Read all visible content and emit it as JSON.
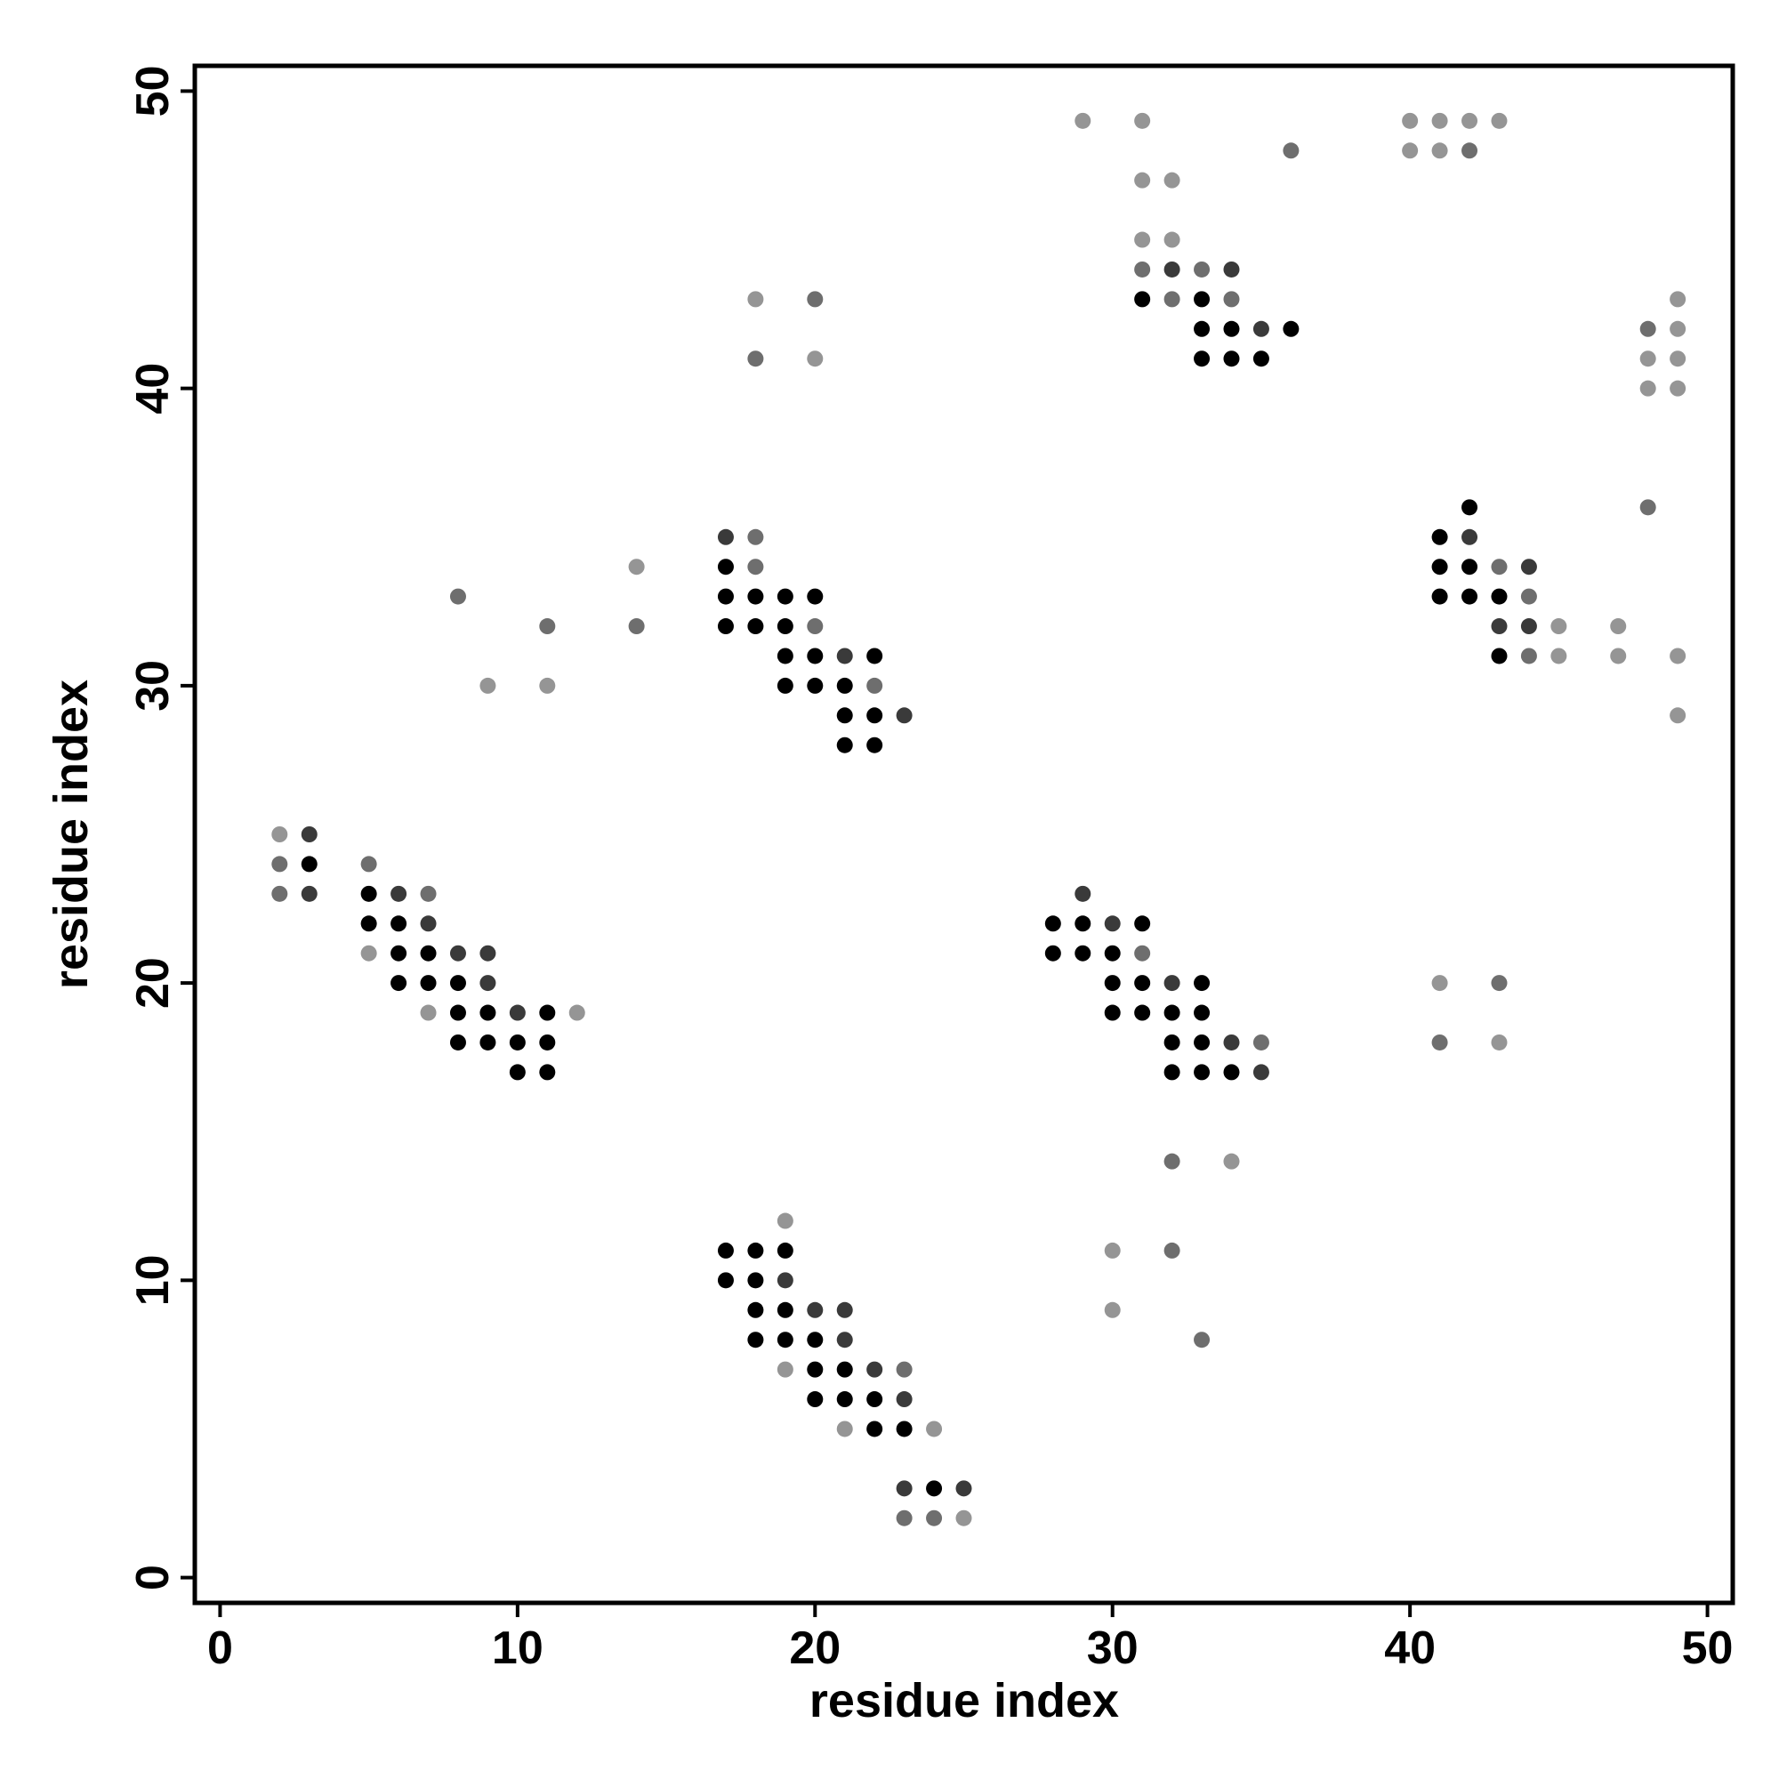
{
  "chart_data": {
    "type": "scatter",
    "xlabel": "residue index",
    "ylabel": "residue index",
    "xlim": [
      -0.85,
      50.85
    ],
    "ylim": [
      -0.85,
      50.85
    ],
    "xticks": [
      0,
      10,
      20,
      30,
      40,
      50
    ],
    "yticks": [
      0,
      10,
      20,
      30,
      40,
      50
    ],
    "series": [
      {
        "color": "#000000",
        "x": [
          31,
          33,
          33,
          34,
          36,
          33,
          34,
          35,
          42,
          41,
          17,
          41,
          42,
          17,
          18,
          19,
          20,
          41,
          42,
          43,
          17,
          18,
          19,
          19,
          20,
          22,
          43,
          19,
          20,
          21,
          21,
          22,
          21,
          22,
          3,
          5,
          5,
          6,
          28,
          29,
          31,
          6,
          7,
          28,
          29,
          30,
          6,
          7,
          8,
          30,
          31,
          33,
          8,
          9,
          11,
          30,
          31,
          32,
          33,
          8,
          9,
          10,
          11,
          32,
          33,
          10,
          11,
          32,
          33,
          34,
          17,
          18,
          19,
          17,
          18,
          18,
          19,
          18,
          19,
          20,
          20,
          21,
          20,
          21,
          22,
          22,
          23,
          24
        ],
        "y": [
          43,
          43,
          42,
          42,
          42,
          41,
          41,
          41,
          36,
          35,
          34,
          34,
          34,
          33,
          33,
          33,
          33,
          33,
          33,
          33,
          32,
          32,
          32,
          31,
          31,
          31,
          31,
          30,
          30,
          30,
          29,
          29,
          28,
          28,
          24,
          23,
          22,
          22,
          22,
          22,
          22,
          21,
          21,
          21,
          21,
          21,
          20,
          20,
          20,
          20,
          20,
          20,
          19,
          19,
          19,
          19,
          19,
          19,
          19,
          18,
          18,
          18,
          18,
          18,
          18,
          17,
          17,
          17,
          17,
          17,
          11,
          11,
          11,
          10,
          10,
          9,
          9,
          8,
          8,
          8,
          7,
          7,
          6,
          6,
          6,
          5,
          5,
          3
        ]
      },
      {
        "color": "#3a3a3a",
        "x": [
          32,
          34,
          35,
          17,
          42,
          44,
          43,
          44,
          21,
          23,
          3,
          3,
          6,
          29,
          7,
          30,
          8,
          9,
          9,
          32,
          10,
          34,
          35,
          19,
          20,
          21,
          21,
          22,
          23,
          23,
          25
        ],
        "y": [
          44,
          44,
          42,
          35,
          35,
          34,
          32,
          32,
          31,
          29,
          25,
          23,
          23,
          23,
          22,
          22,
          21,
          21,
          20,
          20,
          19,
          18,
          17,
          10,
          9,
          9,
          8,
          7,
          6,
          3,
          3
        ]
      },
      {
        "color": "#6e6e6e",
        "x": [
          36,
          42,
          31,
          33,
          20,
          32,
          34,
          48,
          18,
          48,
          18,
          18,
          43,
          8,
          44,
          11,
          14,
          20,
          44,
          22,
          2,
          5,
          2,
          7,
          31,
          43,
          35,
          41,
          32,
          32,
          33,
          23,
          23,
          24
        ],
        "y": [
          48,
          48,
          44,
          44,
          43,
          43,
          43,
          42,
          41,
          36,
          35,
          34,
          34,
          33,
          33,
          32,
          32,
          32,
          31,
          30,
          24,
          24,
          23,
          23,
          21,
          20,
          18,
          18,
          14,
          11,
          8,
          7,
          2,
          2
        ]
      },
      {
        "color": "#959595",
        "x": [
          29,
          31,
          40,
          41,
          42,
          43,
          40,
          41,
          31,
          32,
          31,
          32,
          18,
          49,
          49,
          20,
          48,
          49,
          48,
          49,
          14,
          45,
          47,
          45,
          47,
          49,
          9,
          11,
          49,
          2,
          5,
          41,
          7,
          12,
          43,
          34,
          19,
          30,
          30,
          19,
          21,
          24,
          25
        ],
        "y": [
          49,
          49,
          49,
          49,
          49,
          49,
          48,
          48,
          47,
          47,
          45,
          45,
          43,
          43,
          42,
          41,
          41,
          41,
          40,
          40,
          34,
          32,
          32,
          31,
          31,
          31,
          30,
          30,
          29,
          25,
          21,
          20,
          19,
          19,
          18,
          14,
          12,
          11,
          9,
          7,
          5,
          5,
          2
        ]
      }
    ]
  }
}
